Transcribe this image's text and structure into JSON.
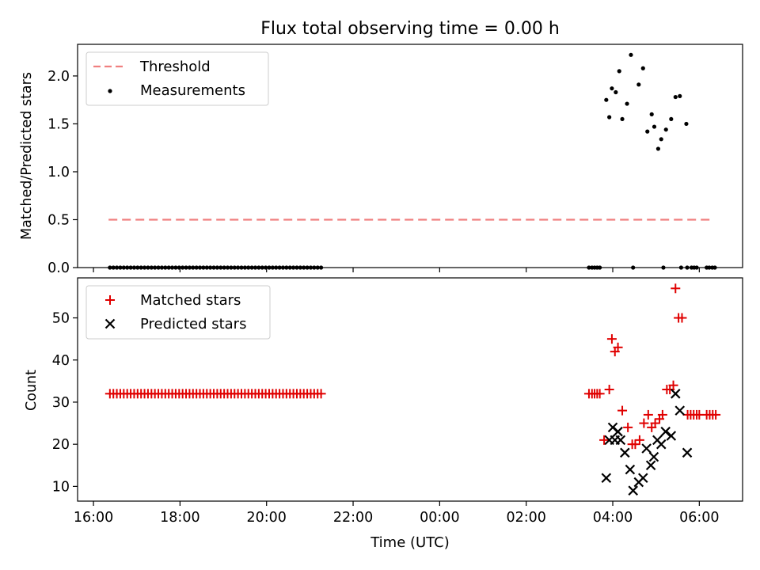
{
  "title": "Flux total observing time = 0.00 h",
  "chart_data": [
    {
      "type": "scatter",
      "panel": "top",
      "ylabel": "Matched/Predicted stars",
      "xlabel": "",
      "xticks": [
        "16:00",
        "18:00",
        "20:00",
        "22:00",
        "00:00",
        "02:00",
        "04:00",
        "06:00"
      ],
      "xtick_hours": [
        16,
        18,
        20,
        22,
        24,
        26,
        28,
        30
      ],
      "xlim_hours": [
        15.633,
        31.0
      ],
      "ylim": [
        0,
        2.33
      ],
      "yticks": [
        "0.0",
        "0.5",
        "1.0",
        "1.5",
        "2.0"
      ],
      "ytick_values": [
        0,
        0.5,
        1.0,
        1.5,
        2.0
      ],
      "legend_position": "top-left",
      "threshold": {
        "name": "Threshold",
        "value": 0.5,
        "x_range_hours": [
          16.35,
          30.27
        ],
        "color": "#f08080"
      },
      "series": [
        {
          "name": "Measurements",
          "color": "#000000",
          "marker": "dot",
          "x_zero_segment": {
            "start_hour": 16.38,
            "end_hour": 21.3,
            "step_hour": 0.08
          },
          "points_hours": [
            [
              27.45,
              0
            ],
            [
              27.52,
              0
            ],
            [
              27.58,
              0
            ],
            [
              27.64,
              0
            ],
            [
              27.7,
              0
            ],
            [
              28.47,
              0
            ],
            [
              29.17,
              0
            ],
            [
              29.58,
              0
            ],
            [
              29.72,
              0
            ],
            [
              29.82,
              0
            ],
            [
              29.88,
              0
            ],
            [
              29.94,
              0
            ],
            [
              30.17,
              0
            ],
            [
              30.23,
              0
            ],
            [
              30.3,
              0
            ],
            [
              30.36,
              0
            ],
            [
              27.85,
              1.75
            ],
            [
              27.92,
              1.57
            ],
            [
              27.98,
              1.87
            ],
            [
              28.07,
              1.83
            ],
            [
              28.15,
              2.05
            ],
            [
              28.22,
              1.55
            ],
            [
              28.33,
              1.71
            ],
            [
              28.42,
              2.22
            ],
            [
              28.6,
              1.91
            ],
            [
              28.7,
              2.08
            ],
            [
              28.8,
              1.42
            ],
            [
              28.9,
              1.6
            ],
            [
              28.96,
              1.47
            ],
            [
              29.05,
              1.24
            ],
            [
              29.12,
              1.34
            ],
            [
              29.23,
              1.44
            ],
            [
              29.35,
              1.55
            ],
            [
              29.45,
              1.78
            ],
            [
              29.55,
              1.79
            ],
            [
              29.7,
              1.5
            ]
          ]
        }
      ]
    },
    {
      "type": "scatter",
      "panel": "bottom",
      "ylabel": "Count",
      "xlabel": "Time (UTC)",
      "xticks": [
        "16:00",
        "18:00",
        "20:00",
        "22:00",
        "00:00",
        "02:00",
        "04:00",
        "06:00"
      ],
      "xtick_hours": [
        16,
        18,
        20,
        22,
        24,
        26,
        28,
        30
      ],
      "xlim_hours": [
        15.633,
        31.0
      ],
      "ylim": [
        6.5,
        59.5
      ],
      "yticks": [
        "10",
        "20",
        "30",
        "40",
        "50"
      ],
      "ytick_values": [
        10,
        20,
        30,
        40,
        50
      ],
      "legend_position": "top-left",
      "series": [
        {
          "name": "Matched stars",
          "color": "#e00000",
          "marker": "plus",
          "constant_segment": {
            "start_hour": 16.38,
            "end_hour": 21.3,
            "step_hour": 0.08,
            "value": 32
          },
          "points_hours": [
            [
              27.45,
              32
            ],
            [
              27.52,
              32
            ],
            [
              27.58,
              32
            ],
            [
              27.64,
              32
            ],
            [
              27.7,
              32
            ],
            [
              27.8,
              21
            ],
            [
              27.92,
              33
            ],
            [
              27.98,
              45
            ],
            [
              28.05,
              42
            ],
            [
              28.12,
              43
            ],
            [
              28.22,
              28
            ],
            [
              28.35,
              24
            ],
            [
              28.45,
              20
            ],
            [
              28.52,
              20
            ],
            [
              28.62,
              21
            ],
            [
              28.72,
              25
            ],
            [
              28.82,
              27
            ],
            [
              28.9,
              24
            ],
            [
              28.98,
              25
            ],
            [
              29.08,
              26
            ],
            [
              29.15,
              27
            ],
            [
              29.25,
              33
            ],
            [
              29.32,
              33
            ],
            [
              29.4,
              34
            ],
            [
              29.45,
              57
            ],
            [
              29.52,
              50
            ],
            [
              29.6,
              50
            ],
            [
              29.73,
              27
            ],
            [
              29.8,
              27
            ],
            [
              29.87,
              27
            ],
            [
              29.94,
              27
            ],
            [
              30.0,
              27
            ],
            [
              30.17,
              27
            ],
            [
              30.24,
              27
            ],
            [
              30.31,
              27
            ],
            [
              30.38,
              27
            ]
          ]
        },
        {
          "name": "Predicted stars",
          "color": "#000000",
          "marker": "x",
          "points_hours": [
            [
              27.85,
              12
            ],
            [
              27.92,
              21
            ],
            [
              28.0,
              24
            ],
            [
              28.05,
              21
            ],
            [
              28.12,
              23
            ],
            [
              28.18,
              21
            ],
            [
              28.28,
              18
            ],
            [
              28.4,
              14
            ],
            [
              28.47,
              9
            ],
            [
              28.6,
              11
            ],
            [
              28.7,
              12
            ],
            [
              28.78,
              19
            ],
            [
              28.88,
              15
            ],
            [
              28.95,
              17
            ],
            [
              29.03,
              21
            ],
            [
              29.12,
              20
            ],
            [
              29.22,
              23
            ],
            [
              29.35,
              22
            ],
            [
              29.45,
              32
            ],
            [
              29.55,
              28
            ],
            [
              29.72,
              18
            ]
          ]
        }
      ]
    }
  ]
}
